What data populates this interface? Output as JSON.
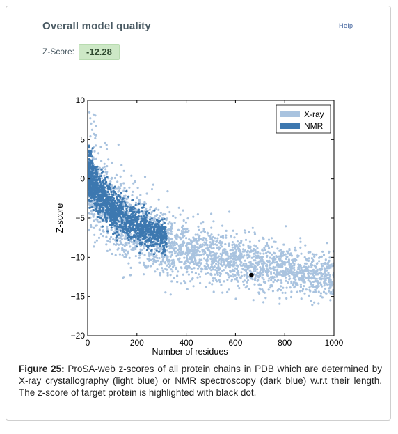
{
  "header": {
    "title": "Overall model quality",
    "help_label": "Help"
  },
  "score": {
    "label": "Z-Score:",
    "value": "-12.28"
  },
  "chart_data": {
    "type": "scatter",
    "xlabel": "Number of residues",
    "ylabel": "Z-score",
    "xlim": [
      0,
      1000
    ],
    "ylim": [
      -20,
      10
    ],
    "x_ticks": [
      0,
      200,
      400,
      600,
      800,
      1000
    ],
    "y_ticks": [
      10,
      5,
      0,
      -5,
      -10,
      -15,
      -20
    ],
    "legend_position": "top-right",
    "grid": false,
    "series": [
      {
        "name": "X-ray",
        "color": "#a9c3df",
        "trend": [
          [
            10,
            -1
          ],
          [
            100,
            -4.5
          ],
          [
            200,
            -6.5
          ],
          [
            300,
            -8
          ],
          [
            400,
            -9
          ],
          [
            500,
            -9.8
          ],
          [
            600,
            -10.5
          ],
          [
            700,
            -11
          ],
          [
            800,
            -11.6
          ],
          [
            900,
            -12.1
          ],
          [
            1000,
            -12.6
          ]
        ],
        "spread": [
          [
            10,
            6
          ],
          [
            100,
            6
          ],
          [
            200,
            5
          ],
          [
            300,
            4.5
          ],
          [
            400,
            4
          ],
          [
            600,
            3.5
          ],
          [
            800,
            3.2
          ],
          [
            1000,
            3.5
          ]
        ]
      },
      {
        "name": "NMR",
        "color": "#3d78b0",
        "trend": [
          [
            5,
            0.5
          ],
          [
            50,
            -2
          ],
          [
            100,
            -4
          ],
          [
            150,
            -5
          ],
          [
            200,
            -6
          ],
          [
            260,
            -6.8
          ],
          [
            320,
            -7.5
          ]
        ],
        "spread": [
          [
            5,
            3.5
          ],
          [
            50,
            3
          ],
          [
            100,
            2.8
          ],
          [
            200,
            2.5
          ],
          [
            320,
            2.2
          ]
        ]
      }
    ],
    "target": {
      "x": 665,
      "y": -12.28,
      "color": "#000000"
    }
  },
  "caption": {
    "label": "Figure 25:",
    "text": " ProSA-web z-scores of all protein chains in PDB which are determined by X-ray crystallography (light blue) or NMR spectroscopy (dark blue) w.r.t their length. The z-score of target protein is highlighted with black dot."
  }
}
